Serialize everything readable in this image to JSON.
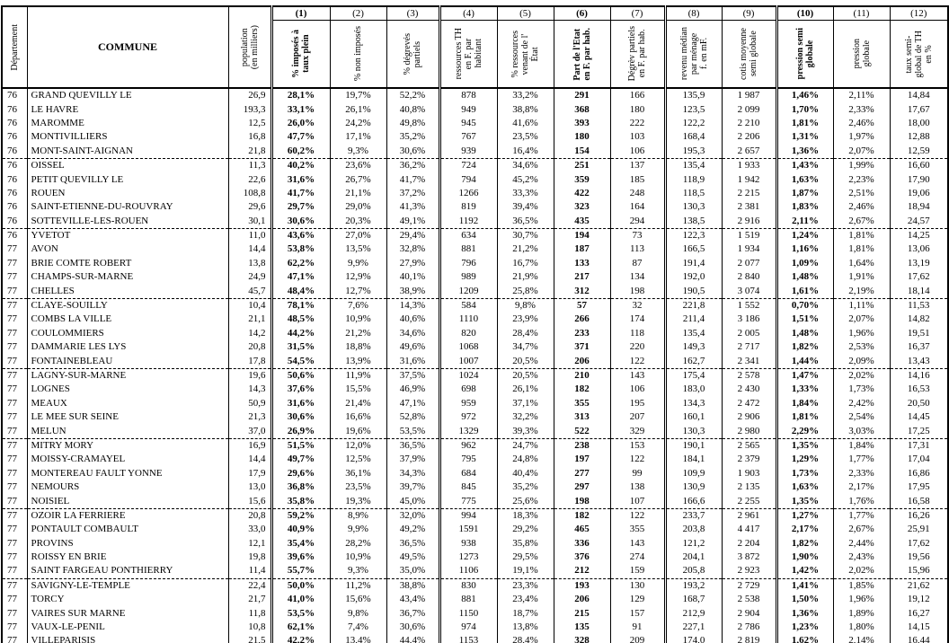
{
  "table": {
    "corner_headers": [
      {
        "label": "Département"
      },
      {
        "label": "COMMUNE"
      },
      {
        "label": "population\n(en milliers)"
      }
    ],
    "numbered_columns": [
      {
        "num": "(1)",
        "label": "% imposés à\ntaux plein",
        "bold": true
      },
      {
        "num": "(2)",
        "label": "% non imposés",
        "bold": false
      },
      {
        "num": "(3)",
        "label": "% dégrevés\npartiels",
        "bold": false
      },
      {
        "num": "(4)",
        "label": "ressources TH\nen F. par\nhabitant",
        "bold": false
      },
      {
        "num": "(5)",
        "label": "% ressources\nvenant de l'\nÉtat",
        "bold": false
      },
      {
        "num": "(6)",
        "label": "Part de l'Etat\nen F. par hab.",
        "bold": true
      },
      {
        "num": "(7)",
        "label": "Dégrèv partiels\nen F. par hab.",
        "bold": false
      },
      {
        "num": "(8)",
        "label": "revenu médian\npar ménage\nf. en mF.",
        "bold": false
      },
      {
        "num": "(9)",
        "label": "cotis moyenne\nsemi globale",
        "bold": false
      },
      {
        "num": "(10)",
        "label": "pression semi\nglobale",
        "bold": true
      },
      {
        "num": "(11)",
        "label": "pression\nglobale",
        "bold": false
      },
      {
        "num": "(12)",
        "label": "taux semi-\nglobal de TH\nen %",
        "bold": false
      }
    ],
    "rows": [
      {
        "dept": "76",
        "commune": "GRAND QUEVILLY LE",
        "population": "26,9",
        "values": [
          "28,1%",
          "19,7%",
          "52,2%",
          "878",
          "33,2%",
          "291",
          "166",
          "135,9",
          "1 987",
          "1,46%",
          "2,11%",
          "14,84"
        ]
      },
      {
        "dept": "76",
        "commune": "LE HAVRE",
        "population": "193,3",
        "values": [
          "33,1%",
          "26,1%",
          "40,8%",
          "949",
          "38,8%",
          "368",
          "180",
          "123,5",
          "2 099",
          "1,70%",
          "2,33%",
          "17,67"
        ]
      },
      {
        "dept": "76",
        "commune": "MAROMME",
        "population": "12,5",
        "values": [
          "26,0%",
          "24,2%",
          "49,8%",
          "945",
          "41,6%",
          "393",
          "222",
          "122,2",
          "2 210",
          "1,81%",
          "2,46%",
          "18,00"
        ]
      },
      {
        "dept": "76",
        "commune": "MONTIVILLIERS",
        "population": "16,8",
        "values": [
          "47,7%",
          "17,1%",
          "35,2%",
          "767",
          "23,5%",
          "180",
          "103",
          "168,4",
          "2 206",
          "1,31%",
          "1,97%",
          "12,88"
        ]
      },
      {
        "dept": "76",
        "commune": "MONT-SAINT-AIGNAN",
        "population": "21,8",
        "values": [
          "60,2%",
          "9,3%",
          "30,6%",
          "939",
          "16,4%",
          "154",
          "106",
          "195,3",
          "2 657",
          "1,36%",
          "2,07%",
          "12,59"
        ]
      },
      {
        "dept": "76",
        "commune": "OISSEL",
        "population": "11,3",
        "values": [
          "40,2%",
          "23,6%",
          "36,2%",
          "724",
          "34,6%",
          "251",
          "137",
          "135,4",
          "1 933",
          "1,43%",
          "1,99%",
          "16,60"
        ]
      },
      {
        "dept": "76",
        "commune": "PETIT QUEVILLY LE",
        "population": "22,6",
        "values": [
          "31,6%",
          "26,7%",
          "41,7%",
          "794",
          "45,2%",
          "359",
          "185",
          "118,9",
          "1 942",
          "1,63%",
          "2,23%",
          "17,90"
        ]
      },
      {
        "dept": "76",
        "commune": "ROUEN",
        "population": "108,8",
        "values": [
          "41,7%",
          "21,1%",
          "37,2%",
          "1266",
          "33,3%",
          "422",
          "248",
          "118,5",
          "2 215",
          "1,87%",
          "2,51%",
          "19,06"
        ]
      },
      {
        "dept": "76",
        "commune": "SAINT-ETIENNE-DU-ROUVRAY",
        "population": "29,6",
        "values": [
          "29,7%",
          "29,0%",
          "41,3%",
          "819",
          "39,4%",
          "323",
          "164",
          "130,3",
          "2 381",
          "1,83%",
          "2,46%",
          "18,94"
        ]
      },
      {
        "dept": "76",
        "commune": "SOTTEVILLE-LES-ROUEN",
        "population": "30,1",
        "values": [
          "30,6%",
          "20,3%",
          "49,1%",
          "1192",
          "36,5%",
          "435",
          "294",
          "138,5",
          "2 916",
          "2,11%",
          "2,67%",
          "24,57"
        ]
      },
      {
        "dept": "76",
        "commune": "YVETOT",
        "population": "11,0",
        "values": [
          "43,6%",
          "27,0%",
          "29,4%",
          "634",
          "30,7%",
          "194",
          "73",
          "122,3",
          "1 519",
          "1,24%",
          "1,81%",
          "14,25"
        ]
      },
      {
        "dept": "77",
        "commune": "AVON",
        "population": "14,4",
        "values": [
          "53,8%",
          "13,5%",
          "32,8%",
          "881",
          "21,2%",
          "187",
          "113",
          "166,5",
          "1 934",
          "1,16%",
          "1,81%",
          "13,06"
        ]
      },
      {
        "dept": "77",
        "commune": "BRIE COMTE ROBERT",
        "population": "13,8",
        "values": [
          "62,2%",
          "9,9%",
          "27,9%",
          "796",
          "16,7%",
          "133",
          "87",
          "191,4",
          "2 077",
          "1,09%",
          "1,64%",
          "13,19"
        ]
      },
      {
        "dept": "77",
        "commune": "CHAMPS-SUR-MARNE",
        "population": "24,9",
        "values": [
          "47,1%",
          "12,9%",
          "40,1%",
          "989",
          "21,9%",
          "217",
          "134",
          "192,0",
          "2 840",
          "1,48%",
          "1,91%",
          "17,62"
        ]
      },
      {
        "dept": "77",
        "commune": "CHELLES",
        "population": "45,7",
        "values": [
          "48,4%",
          "12,7%",
          "38,9%",
          "1209",
          "25,8%",
          "312",
          "198",
          "190,5",
          "3 074",
          "1,61%",
          "2,19%",
          "18,14"
        ]
      },
      {
        "dept": "77",
        "commune": "CLAYE-SOUILLY",
        "population": "10,4",
        "values": [
          "78,1%",
          "7,6%",
          "14,3%",
          "584",
          "9,8%",
          "57",
          "32",
          "221,8",
          "1 552",
          "0,70%",
          "1,11%",
          "11,53"
        ]
      },
      {
        "dept": "77",
        "commune": "COMBS LA VILLE",
        "population": "21,1",
        "values": [
          "48,5%",
          "10,9%",
          "40,6%",
          "1110",
          "23,9%",
          "266",
          "174",
          "211,4",
          "3 186",
          "1,51%",
          "2,07%",
          "14,82"
        ]
      },
      {
        "dept": "77",
        "commune": "COULOMMIERS",
        "population": "14,2",
        "values": [
          "44,2%",
          "21,2%",
          "34,6%",
          "820",
          "28,4%",
          "233",
          "118",
          "135,4",
          "2 005",
          "1,48%",
          "1,96%",
          "19,51"
        ]
      },
      {
        "dept": "77",
        "commune": "DAMMARIE LES LYS",
        "population": "20,8",
        "values": [
          "31,5%",
          "18,8%",
          "49,6%",
          "1068",
          "34,7%",
          "371",
          "220",
          "149,3",
          "2 717",
          "1,82%",
          "2,53%",
          "16,37"
        ]
      },
      {
        "dept": "77",
        "commune": "FONTAINEBLEAU",
        "population": "17,8",
        "values": [
          "54,5%",
          "13,9%",
          "31,6%",
          "1007",
          "20,5%",
          "206",
          "122",
          "162,7",
          "2 341",
          "1,44%",
          "2,09%",
          "13,43"
        ]
      },
      {
        "dept": "77",
        "commune": "LAGNY-SUR-MARNE",
        "population": "19,6",
        "values": [
          "50,6%",
          "11,9%",
          "37,5%",
          "1024",
          "20,5%",
          "210",
          "143",
          "175,4",
          "2 578",
          "1,47%",
          "2,02%",
          "14,16"
        ]
      },
      {
        "dept": "77",
        "commune": "LOGNES",
        "population": "14,3",
        "values": [
          "37,6%",
          "15,5%",
          "46,9%",
          "698",
          "26,1%",
          "182",
          "106",
          "183,0",
          "2 430",
          "1,33%",
          "1,73%",
          "16,53"
        ]
      },
      {
        "dept": "77",
        "commune": "MEAUX",
        "population": "50,9",
        "values": [
          "31,6%",
          "21,4%",
          "47,1%",
          "959",
          "37,1%",
          "355",
          "195",
          "134,3",
          "2 472",
          "1,84%",
          "2,42%",
          "20,50"
        ]
      },
      {
        "dept": "77",
        "commune": "LE MEE SUR SEINE",
        "population": "21,3",
        "values": [
          "30,6%",
          "16,6%",
          "52,8%",
          "972",
          "32,2%",
          "313",
          "207",
          "160,1",
          "2 906",
          "1,81%",
          "2,54%",
          "14,45"
        ]
      },
      {
        "dept": "77",
        "commune": "MELUN",
        "population": "37,0",
        "values": [
          "26,9%",
          "19,6%",
          "53,5%",
          "1329",
          "39,3%",
          "522",
          "329",
          "130,3",
          "2 980",
          "2,29%",
          "3,03%",
          "17,25"
        ]
      },
      {
        "dept": "77",
        "commune": "MITRY MORY",
        "population": "16,9",
        "values": [
          "51,5%",
          "12,0%",
          "36,5%",
          "962",
          "24,7%",
          "238",
          "153",
          "190,1",
          "2 565",
          "1,35%",
          "1,84%",
          "17,31"
        ]
      },
      {
        "dept": "77",
        "commune": "MOISSY-CRAMAYEL",
        "population": "14,4",
        "values": [
          "49,7%",
          "12,5%",
          "37,9%",
          "795",
          "24,8%",
          "197",
          "122",
          "184,1",
          "2 379",
          "1,29%",
          "1,77%",
          "17,04"
        ]
      },
      {
        "dept": "77",
        "commune": "MONTEREAU FAULT YONNE",
        "population": "17,9",
        "values": [
          "29,6%",
          "36,1%",
          "34,3%",
          "684",
          "40,4%",
          "277",
          "99",
          "109,9",
          "1 903",
          "1,73%",
          "2,33%",
          "16,86"
        ]
      },
      {
        "dept": "77",
        "commune": "NEMOURS",
        "population": "13,0",
        "values": [
          "36,8%",
          "23,5%",
          "39,7%",
          "845",
          "35,2%",
          "297",
          "138",
          "130,9",
          "2 135",
          "1,63%",
          "2,17%",
          "17,95"
        ]
      },
      {
        "dept": "77",
        "commune": "NOISIEL",
        "population": "15,6",
        "values": [
          "35,8%",
          "19,3%",
          "45,0%",
          "775",
          "25,6%",
          "198",
          "107",
          "166,6",
          "2 255",
          "1,35%",
          "1,76%",
          "16,58"
        ]
      },
      {
        "dept": "77",
        "commune": "OZOIR LA FERRIERE",
        "population": "20,8",
        "values": [
          "59,2%",
          "8,9%",
          "32,0%",
          "994",
          "18,3%",
          "182",
          "122",
          "233,7",
          "2 961",
          "1,27%",
          "1,77%",
          "16,26"
        ]
      },
      {
        "dept": "77",
        "commune": "PONTAULT COMBAULT",
        "population": "33,0",
        "values": [
          "40,9%",
          "9,9%",
          "49,2%",
          "1591",
          "29,2%",
          "465",
          "355",
          "203,8",
          "4 417",
          "2,17%",
          "2,67%",
          "25,91"
        ]
      },
      {
        "dept": "77",
        "commune": "PROVINS",
        "population": "12,1",
        "values": [
          "35,4%",
          "28,2%",
          "36,5%",
          "938",
          "35,8%",
          "336",
          "143",
          "121,2",
          "2 204",
          "1,82%",
          "2,44%",
          "17,62"
        ]
      },
      {
        "dept": "77",
        "commune": "ROISSY EN BRIE",
        "population": "19,8",
        "values": [
          "39,6%",
          "10,9%",
          "49,5%",
          "1273",
          "29,5%",
          "376",
          "274",
          "204,1",
          "3 872",
          "1,90%",
          "2,43%",
          "19,56"
        ]
      },
      {
        "dept": "77",
        "commune": "SAINT FARGEAU PONTHIERRY",
        "population": "11,4",
        "values": [
          "55,7%",
          "9,3%",
          "35,0%",
          "1106",
          "19,1%",
          "212",
          "159",
          "205,8",
          "2 923",
          "1,42%",
          "2,02%",
          "15,96"
        ]
      },
      {
        "dept": "77",
        "commune": "SAVIGNY-LE-TEMPLE",
        "population": "22,4",
        "values": [
          "50,0%",
          "11,2%",
          "38,8%",
          "830",
          "23,3%",
          "193",
          "130",
          "193,2",
          "2 729",
          "1,41%",
          "1,85%",
          "21,62"
        ]
      },
      {
        "dept": "77",
        "commune": "TORCY",
        "population": "21,7",
        "values": [
          "41,0%",
          "15,6%",
          "43,4%",
          "881",
          "23,4%",
          "206",
          "129",
          "168,7",
          "2 538",
          "1,50%",
          "1,96%",
          "19,12"
        ]
      },
      {
        "dept": "77",
        "commune": "VAIRES SUR MARNE",
        "population": "11,8",
        "values": [
          "53,5%",
          "9,8%",
          "36,7%",
          "1150",
          "18,7%",
          "215",
          "157",
          "212,9",
          "2 904",
          "1,36%",
          "1,89%",
          "16,27"
        ]
      },
      {
        "dept": "77",
        "commune": "VAUX-LE-PENIL",
        "population": "10,8",
        "values": [
          "62,1%",
          "7,4%",
          "30,6%",
          "974",
          "13,8%",
          "135",
          "91",
          "227,1",
          "2 786",
          "1,23%",
          "1,80%",
          "14,15"
        ]
      },
      {
        "dept": "77",
        "commune": "VILLEPARISIS",
        "population": "21,5",
        "values": [
          "42,2%",
          "13,4%",
          "44,4%",
          "1153",
          "28,4%",
          "328",
          "209",
          "174,0",
          "2 819",
          "1,62%",
          "2,14%",
          "16,44"
        ]
      }
    ]
  }
}
